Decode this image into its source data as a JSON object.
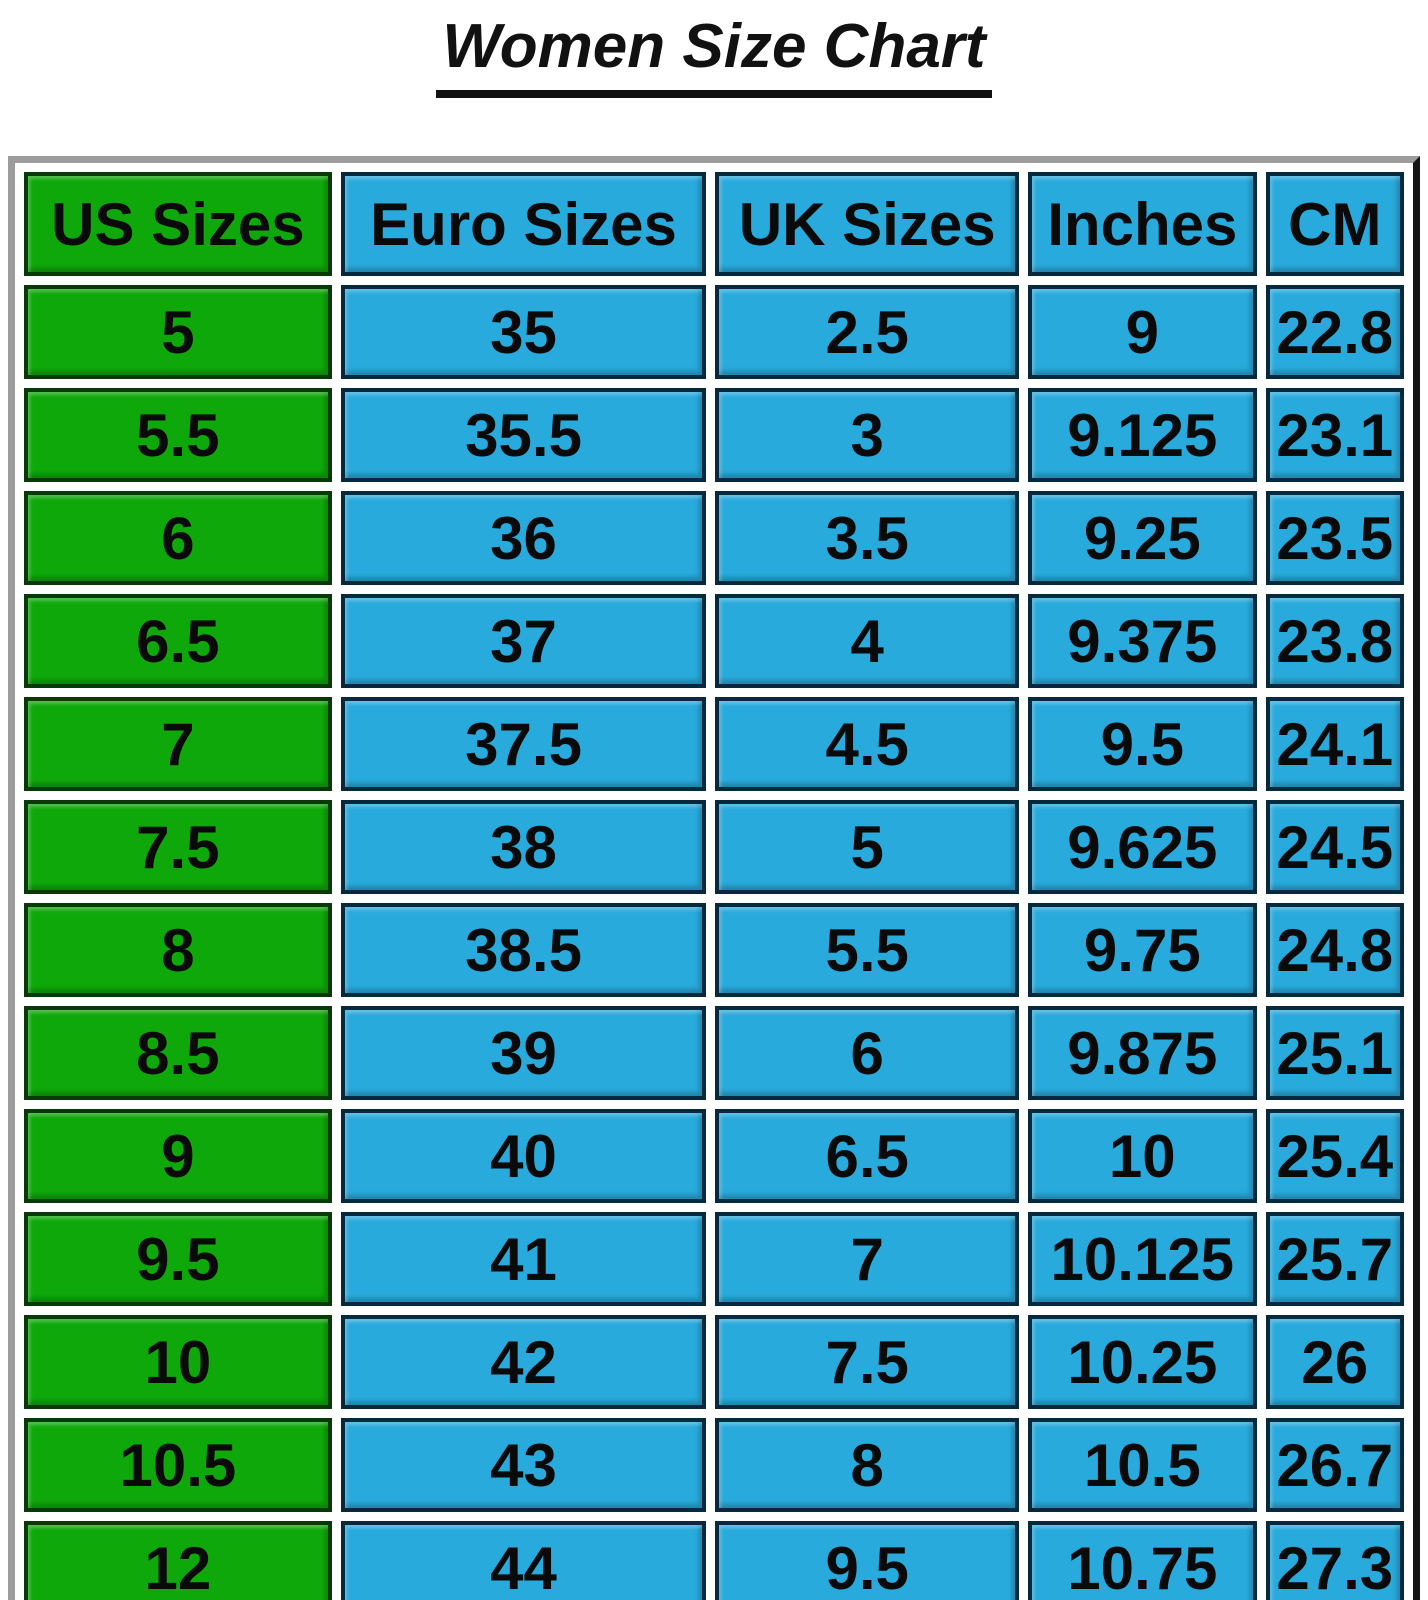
{
  "title": "Women Size Chart",
  "chart_data": {
    "type": "table",
    "title": "Women Size Chart",
    "headers": [
      "US Sizes",
      "Euro Sizes",
      "UK Sizes",
      "Inches",
      "CM"
    ],
    "rows": [
      [
        "5",
        "35",
        "2.5",
        "9",
        "22.8"
      ],
      [
        "5.5",
        "35.5",
        "3",
        "9.125",
        "23.1"
      ],
      [
        "6",
        "36",
        "3.5",
        "9.25",
        "23.5"
      ],
      [
        "6.5",
        "37",
        "4",
        "9.375",
        "23.8"
      ],
      [
        "7",
        "37.5",
        "4.5",
        "9.5",
        "24.1"
      ],
      [
        "7.5",
        "38",
        "5",
        "9.625",
        "24.5"
      ],
      [
        "8",
        "38.5",
        "5.5",
        "9.75",
        "24.8"
      ],
      [
        "8.5",
        "39",
        "6",
        "9.875",
        "25.1"
      ],
      [
        "9",
        "40",
        "6.5",
        "10",
        "25.4"
      ],
      [
        "9.5",
        "41",
        "7",
        "10.125",
        "25.7"
      ],
      [
        "10",
        "42",
        "7.5",
        "10.25",
        "26"
      ],
      [
        "10.5",
        "43",
        "8",
        "10.5",
        "26.7"
      ],
      [
        "12",
        "44",
        "9.5",
        "10.75",
        "27.3"
      ]
    ],
    "layout": {
      "highlight_column": "US Sizes",
      "grid": "white gaps between bordered cells",
      "header_position": "top"
    }
  },
  "colors": {
    "us_column_fill": "#0FA80A",
    "metric_column_fill": "#29AADC",
    "us_column_border": "#073A07",
    "metric_column_border": "#06293D",
    "frame_light": "#9C9C9C",
    "frame_dark": "#141414",
    "text": "#0A0A0A",
    "background": "#FFFFFF",
    "title_color": "#111111"
  }
}
